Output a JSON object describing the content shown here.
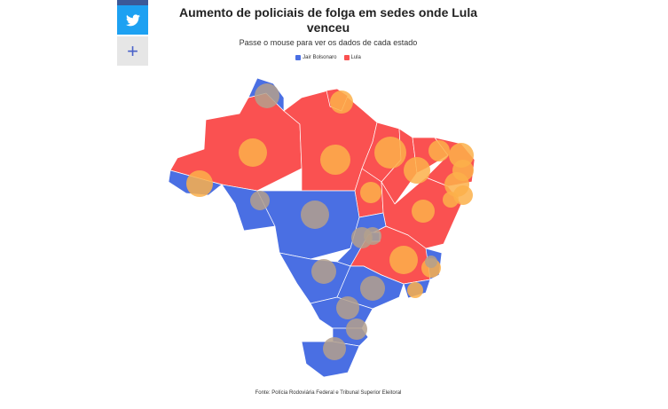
{
  "title": "Aumento de policiais de folga em sedes onde Lula venceu",
  "subtitle": "Passe o mouse para ver os dados de cada estado",
  "legend": [
    {
      "name": "Jair Bolsonaro",
      "color": "#4a6fe3"
    },
    {
      "name": "Lula",
      "color": "#fa5151"
    }
  ],
  "source": "Fonte: Polícia Rodoviária Federal e Tribunal Superior Eleitoral",
  "share": {
    "twitter_icon": "twitter-icon",
    "more_icon": "plus-icon"
  },
  "colors": {
    "bolsonaro": "#4a6fe3",
    "lula": "#fa5151",
    "bubble_bolsonaro": "#b4a08c",
    "bubble_lula": "#fbb04a",
    "bubble_outline": "#fde3a0"
  }
}
